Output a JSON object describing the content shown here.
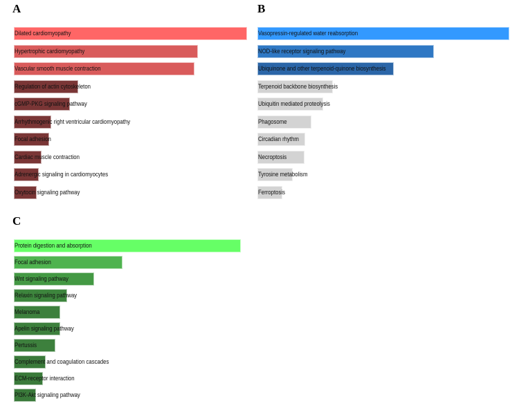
{
  "chart_data": [
    {
      "type": "bar",
      "panel_label": "A",
      "orientation": "horizontal",
      "value_unit": "relative score (fraction of top term)",
      "categories": [
        "Dilated cardiomyopathy",
        "Hypertrophic cardiomyopathy",
        "Vascular smooth muscle contraction",
        "Regulation of actin cytoskeleton",
        "cGMP-PKG signaling pathway",
        "Arrhythmogenic right ventricular cardiomyopathy",
        "Focal adhesion",
        "Cardiac muscle contraction",
        "Adrenergic signaling in cardiomyocytes",
        "Oxytocin signaling pathway"
      ],
      "values": [
        1.0,
        0.79,
        0.775,
        0.275,
        0.24,
        0.16,
        0.15,
        0.12,
        0.108,
        0.098
      ],
      "colors": [
        "#ff6666",
        "#d95b5b",
        "#d95b5b",
        "#7a3636",
        "#7a3636",
        "#7a3636",
        "#7a3636",
        "#7a3636",
        "#7a3636",
        "#7a3636"
      ]
    },
    {
      "type": "bar",
      "panel_label": "B",
      "orientation": "horizontal",
      "value_unit": "relative score (fraction of top term)",
      "categories": [
        "Vasopressin-regulated water reabsorption",
        "NOD-like receptor signaling pathway",
        "Ubiquinone and other terpenoid-quinone biosynthesis",
        "Terpenoid backbone biosynthesis",
        "Ubiquitin mediated proteolysis",
        "Phagosome",
        "Circadian rhythm",
        "Necroptosis",
        "Tyrosine metabolism",
        "Ferroptosis"
      ],
      "values": [
        1.0,
        0.7,
        0.54,
        0.3,
        0.26,
        0.215,
        0.19,
        0.187,
        0.14,
        0.099
      ],
      "colors": [
        "#3399ff",
        "#2f78c4",
        "#2b66a8",
        "#d3d3d3",
        "#d3d3d3",
        "#d3d3d3",
        "#d3d3d3",
        "#d3d3d3",
        "#d3d3d3",
        "#d3d3d3"
      ]
    },
    {
      "type": "bar",
      "panel_label": "C",
      "orientation": "horizontal",
      "value_unit": "relative score (fraction of top term)",
      "categories": [
        "Protein digestion and absorption",
        "Focal adhesion",
        "Wnt signaling pathway",
        "Relaxin signaling pathway",
        "Melanoma",
        "Apelin signaling pathway",
        "Pertussis",
        "Complement and coagulation cascades",
        "ECM-receptor interaction",
        "PI3K-Akt signaling pathway"
      ],
      "values": [
        1.0,
        0.48,
        0.354,
        0.235,
        0.204,
        0.204,
        0.183,
        0.14,
        0.128,
        0.098
      ],
      "colors": [
        "#66ff66",
        "#4fb34f",
        "#449944",
        "#3d853d",
        "#3d803d",
        "#3d803d",
        "#3d803d",
        "#3a7a3a",
        "#3a7a3a",
        "#3a7a3a"
      ]
    }
  ]
}
